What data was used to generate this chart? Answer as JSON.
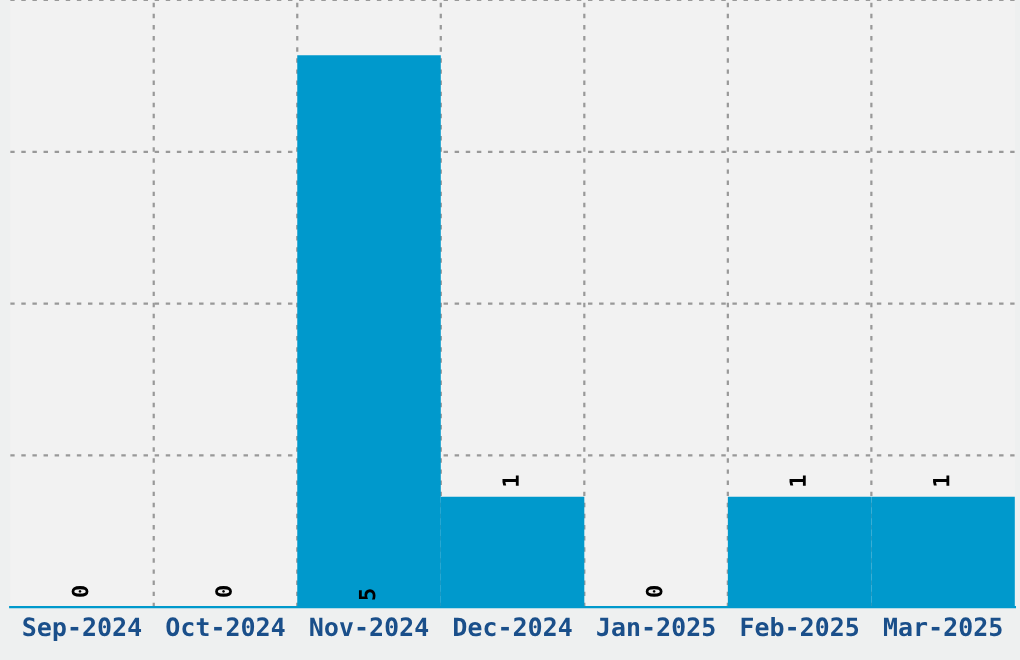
{
  "chart_data": {
    "type": "bar",
    "categories": [
      "Sep-2024",
      "Oct-2024",
      "Nov-2024",
      "Dec-2024",
      "Jan-2025",
      "Feb-2025",
      "Mar-2025"
    ],
    "values": [
      0,
      0,
      5,
      1,
      0,
      1,
      1
    ],
    "color": "#0099cc",
    "ylim": [
      0,
      5.5
    ],
    "yticks": [
      {
        "value": 0,
        "label": null
      },
      {
        "value": 1.375,
        "label": null
      },
      {
        "value": 2.75,
        "label": null
      },
      {
        "value": 4.125,
        "label": null
      },
      {
        "value": 5.5,
        "label": null
      }
    ],
    "tick_labels": "x",
    "grid": true,
    "data_labels": true
  }
}
